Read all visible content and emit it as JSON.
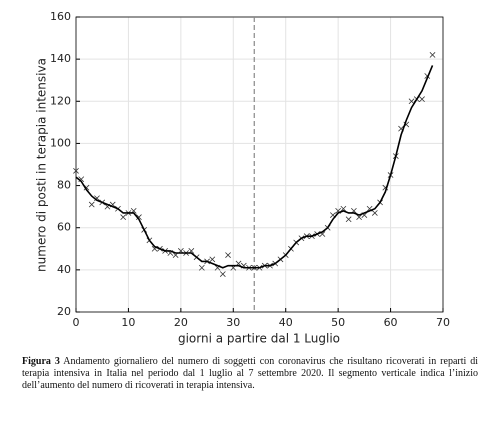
{
  "chart_data": {
    "type": "line",
    "xlabel": "giorni a partire dal 1 Luglio",
    "ylabel": "numero di posti in terapia intensiva",
    "x": [
      0,
      1,
      2,
      3,
      4,
      5,
      6,
      7,
      8,
      9,
      10,
      11,
      12,
      13,
      14,
      15,
      16,
      17,
      18,
      19,
      20,
      21,
      22,
      23,
      24,
      25,
      26,
      27,
      28,
      29,
      30,
      31,
      32,
      33,
      34,
      35,
      36,
      37,
      38,
      39,
      40,
      41,
      42,
      43,
      44,
      45,
      46,
      47,
      48,
      49,
      50,
      51,
      52,
      53,
      54,
      55,
      56,
      57,
      58,
      59,
      60,
      61,
      62,
      63,
      64,
      65,
      66,
      67,
      68
    ],
    "series": [
      {
        "style": "marker",
        "color": "#333333",
        "values": [
          87,
          83,
          79,
          71,
          74,
          72,
          70,
          71,
          69,
          65,
          67,
          68,
          65,
          59,
          54,
          50,
          50,
          49,
          48,
          47,
          49,
          48,
          49,
          46,
          41,
          44,
          45,
          41,
          38,
          47,
          41,
          43,
          42,
          41,
          41,
          41,
          42,
          42,
          43,
          45,
          47,
          50,
          53,
          55,
          56,
          56,
          57,
          57,
          60,
          66,
          68,
          69,
          64,
          68,
          65,
          66,
          69,
          67,
          72,
          79,
          85,
          94,
          107,
          109,
          120,
          121,
          121,
          132,
          142
        ]
      },
      {
        "style": "line",
        "color": "#000000",
        "values": [
          84,
          82,
          78,
          75,
          73,
          72,
          71,
          70,
          69,
          67,
          67,
          67,
          64,
          59,
          54,
          51,
          50,
          49,
          49,
          48,
          48,
          48,
          48,
          46,
          44,
          44,
          43,
          42,
          41,
          42,
          42,
          42,
          41,
          41,
          41,
          41,
          42,
          42,
          43,
          45,
          47,
          50,
          53,
          55,
          56,
          56,
          57,
          58,
          60,
          64,
          67,
          68,
          67,
          67,
          66,
          67,
          68,
          69,
          72,
          77,
          85,
          94,
          104,
          111,
          117,
          121,
          125,
          131,
          137
        ]
      }
    ],
    "xlim": [
      0,
      70
    ],
    "xticks": [
      0,
      10,
      20,
      30,
      40,
      50,
      60,
      70
    ],
    "ylim": [
      20,
      160
    ],
    "yticks": [
      20,
      40,
      60,
      80,
      100,
      120,
      140,
      160
    ],
    "grid": true,
    "vline": 34,
    "vline_color": "#888888"
  },
  "caption": {
    "label": "Figura 3",
    "text": "Andamento giornaliero del numero di soggetti con coronavirus che risultano ricoverati in reparti di terapia intensiva in Italia nel periodo dal 1 luglio al 7 settembre 2020. Il segmento verticale indica l’inizio dell’aumento del numero di ricoverati in terapia intensiva."
  }
}
